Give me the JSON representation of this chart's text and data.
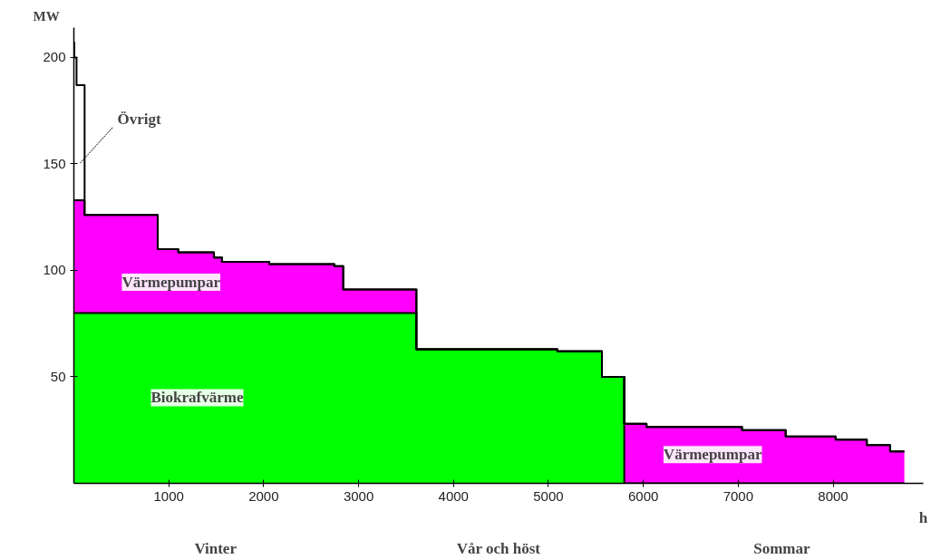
{
  "chart_data": {
    "type": "area",
    "stacked": true,
    "xlabel": "h",
    "ylabel": "MW",
    "x": [
      0,
      5,
      5,
      28,
      28,
      113,
      113,
      883,
      883,
      1100,
      1100,
      1475,
      1475,
      1560,
      1560,
      2058,
      2058,
      2744,
      2744,
      2838,
      2838,
      3609,
      3609,
      5094,
      5094,
      5564,
      5564,
      5799,
      5799,
      6034,
      6034,
      7040,
      7040,
      7500,
      7500,
      8026,
      8026,
      8355,
      8355,
      8600,
      8600,
      8750
    ],
    "series": [
      {
        "name": "Biokrafvärme",
        "color": "#00ff00",
        "values": [
          80,
          80,
          80,
          80,
          80,
          80,
          80,
          80,
          80,
          80,
          80,
          80,
          80,
          80,
          80,
          80,
          80,
          80,
          80,
          80,
          80,
          80,
          63,
          63,
          62,
          62,
          50,
          50,
          0,
          0,
          0,
          0,
          0,
          0,
          0,
          0,
          0,
          0,
          0,
          0,
          0,
          0
        ]
      },
      {
        "name": "Värmepumpar",
        "color": "#ff00ff",
        "values": [
          53,
          53,
          53,
          53,
          53,
          53,
          46,
          46,
          30,
          30,
          28.5,
          28.5,
          26,
          26,
          24,
          24,
          23,
          23,
          22,
          22,
          11,
          11,
          0,
          0,
          0,
          0,
          0,
          0,
          28,
          28,
          26.5,
          26.5,
          25,
          25,
          22,
          22,
          20.5,
          20.5,
          18,
          18,
          15,
          15
        ]
      },
      {
        "name": "Övrigt",
        "color": "#ffffff",
        "values": [
          74,
          74,
          67,
          67,
          54,
          54,
          0,
          0,
          0,
          0,
          0,
          0,
          0,
          0,
          0,
          0,
          0,
          0,
          0,
          0,
          0,
          0,
          0,
          0,
          0,
          0,
          0,
          0,
          0,
          0,
          0,
          0,
          0,
          0,
          0,
          0,
          0,
          0,
          0,
          0,
          0,
          0
        ]
      }
    ],
    "xlim": [
      0,
      8950
    ],
    "ylim": [
      0,
      214
    ],
    "xticks": [
      1000,
      2000,
      3000,
      4000,
      5000,
      6000,
      7000,
      8000
    ],
    "yticks": [
      50,
      100,
      150,
      200
    ],
    "grid": false,
    "annotations": [
      "Vinter",
      "Vår och höst",
      "Sommar"
    ]
  }
}
